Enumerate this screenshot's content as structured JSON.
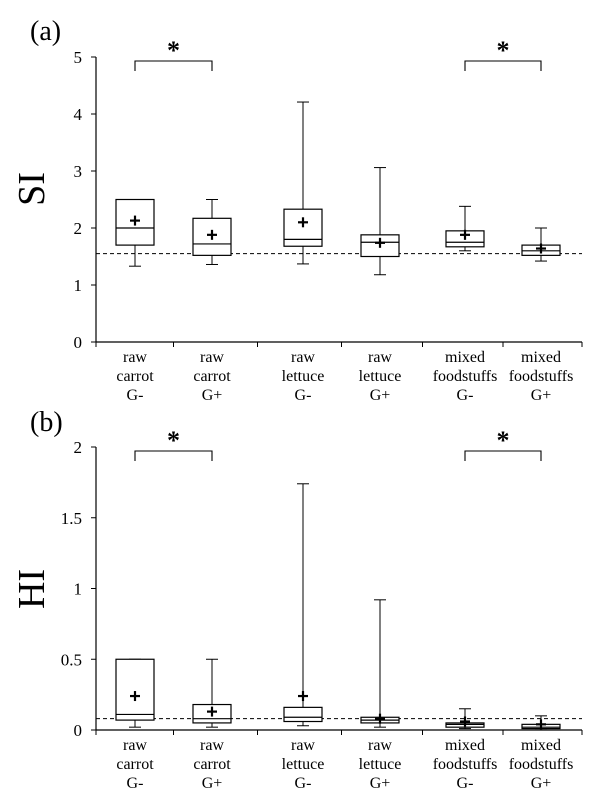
{
  "chart_data": [
    {
      "panel_label": "(a)",
      "type": "box",
      "ylabel": "SI",
      "ylim": [
        0,
        5
      ],
      "yticks": [
        "0",
        "1",
        "2",
        "3",
        "4",
        "5"
      ],
      "categories": [
        [
          "raw",
          "carrot",
          "G-"
        ],
        [
          "raw",
          "carrot",
          "G+"
        ],
        [
          "raw",
          "lettuce",
          "G-"
        ],
        [
          "raw",
          "lettuce",
          "G+"
        ],
        [
          "mixed",
          "foodstuffs",
          "G-"
        ],
        [
          "mixed",
          "foodstuffs",
          "G+"
        ]
      ],
      "boxes": [
        {
          "min": 1.33,
          "q1": 1.7,
          "median": 2.0,
          "q3": 2.5,
          "max": 2.5,
          "mean": 2.13
        },
        {
          "min": 1.36,
          "q1": 1.52,
          "median": 1.72,
          "q3": 2.17,
          "max": 2.5,
          "mean": 1.88
        },
        {
          "min": 1.37,
          "q1": 1.68,
          "median": 1.8,
          "q3": 2.33,
          "max": 4.21,
          "mean": 2.1
        },
        {
          "min": 1.18,
          "q1": 1.5,
          "median": 1.75,
          "q3": 1.88,
          "max": 3.06,
          "mean": 1.74
        },
        {
          "min": 1.6,
          "q1": 1.67,
          "median": 1.75,
          "q3": 1.95,
          "max": 2.38,
          "mean": 1.88
        },
        {
          "min": 1.42,
          "q1": 1.52,
          "median": 1.6,
          "q3": 1.7,
          "max": 2.0,
          "mean": 1.64
        }
      ],
      "reference_line": 1.55,
      "significance": [
        {
          "from": 0,
          "to": 1,
          "label": "*"
        },
        {
          "from": 4,
          "to": 5,
          "label": "*"
        }
      ]
    },
    {
      "panel_label": "(b)",
      "type": "box",
      "ylabel": "HI",
      "ylim": [
        0,
        2
      ],
      "yticks": [
        "0",
        "0.5",
        "1",
        "1.5",
        "2"
      ],
      "categories": [
        [
          "raw",
          "carrot",
          "G-"
        ],
        [
          "raw",
          "carrot",
          "G+"
        ],
        [
          "raw",
          "lettuce",
          "G-"
        ],
        [
          "raw",
          "lettuce",
          "G+"
        ],
        [
          "mixed",
          "foodstuffs",
          "G-"
        ],
        [
          "mixed",
          "foodstuffs",
          "G+"
        ]
      ],
      "boxes": [
        {
          "min": 0.02,
          "q1": 0.07,
          "median": 0.11,
          "q3": 0.5,
          "max": 0.5,
          "mean": 0.24
        },
        {
          "min": 0.02,
          "q1": 0.05,
          "median": 0.08,
          "q3": 0.18,
          "max": 0.5,
          "mean": 0.13
        },
        {
          "min": 0.03,
          "q1": 0.06,
          "median": 0.09,
          "q3": 0.16,
          "max": 1.74,
          "mean": 0.24
        },
        {
          "min": 0.02,
          "q1": 0.05,
          "median": 0.07,
          "q3": 0.09,
          "max": 0.92,
          "mean": 0.08
        },
        {
          "min": 0.01,
          "q1": 0.02,
          "median": 0.04,
          "q3": 0.05,
          "max": 0.15,
          "mean": 0.06
        },
        {
          "min": 0.01,
          "q1": 0.01,
          "median": 0.02,
          "q3": 0.04,
          "max": 0.1,
          "mean": 0.04
        }
      ],
      "reference_line": 0.08,
      "significance": [
        {
          "from": 0,
          "to": 1,
          "label": "*"
        },
        {
          "from": 4,
          "to": 5,
          "label": "*"
        }
      ]
    }
  ]
}
